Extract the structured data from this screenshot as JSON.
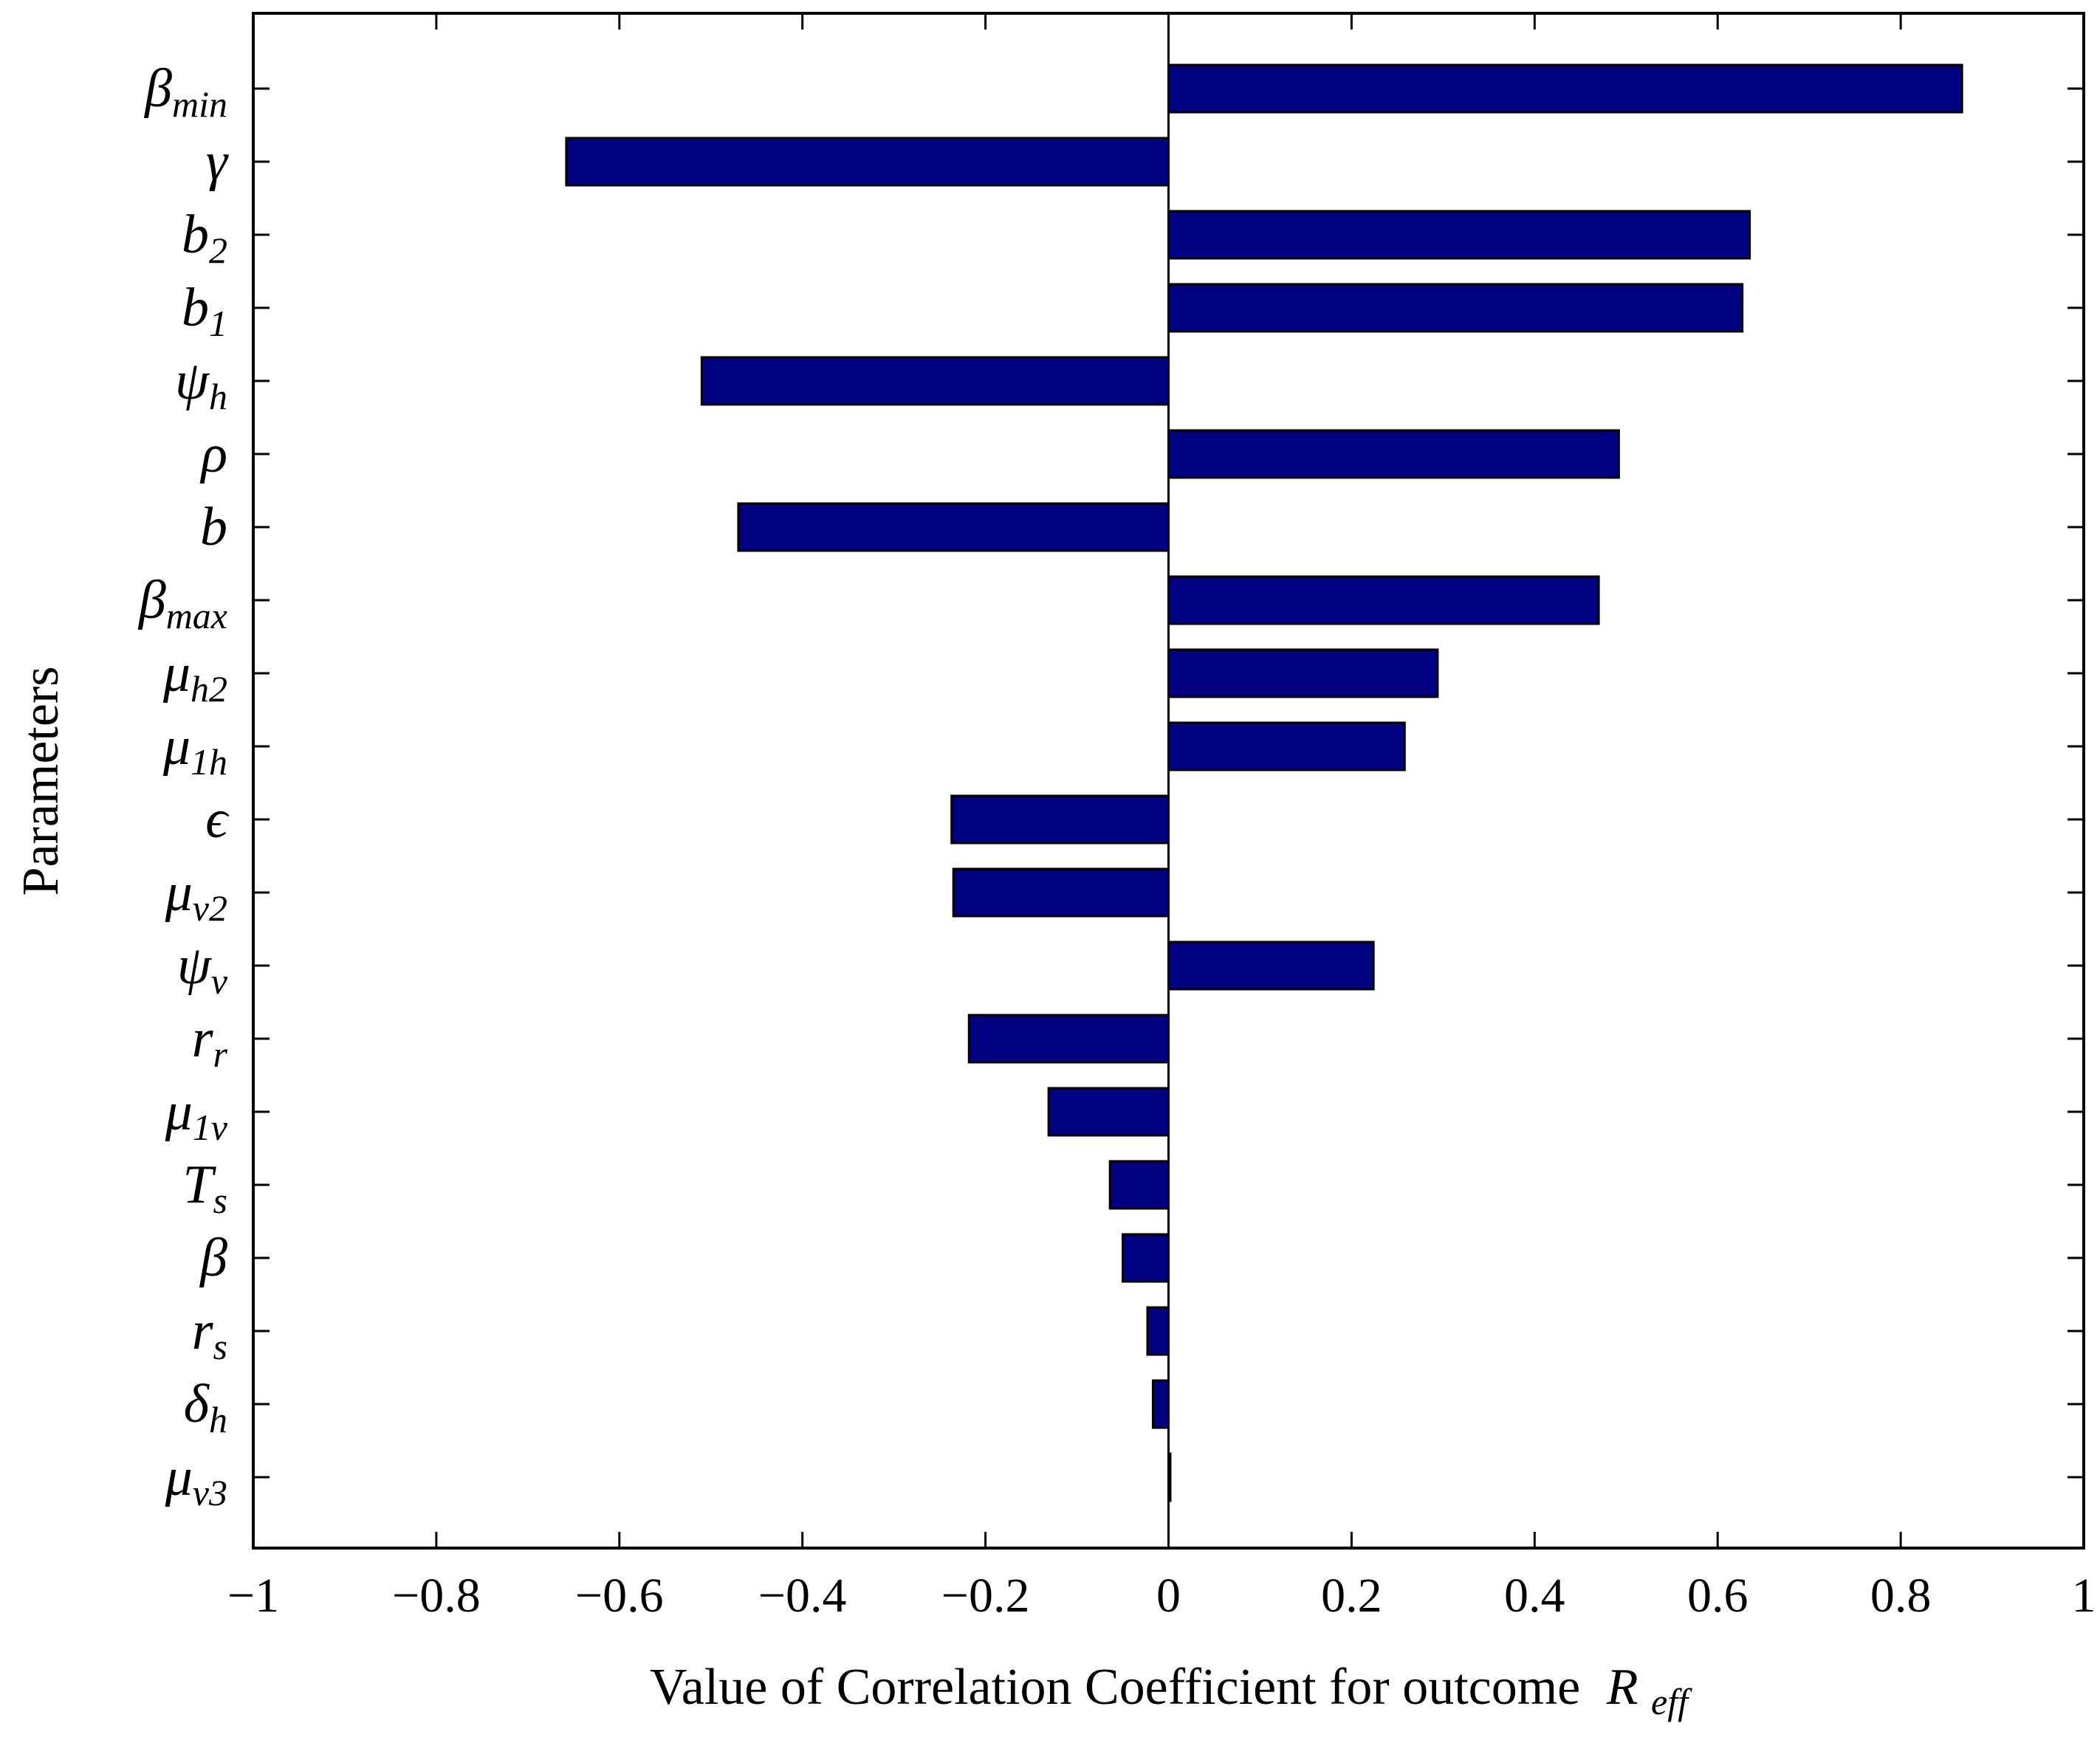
{
  "chart_data": {
    "type": "bar",
    "orientation": "horizontal",
    "xlabel": "Value of Correlation Coefficient for outcome",
    "xlabel_symbol": {
      "base": "R",
      "sub": "eff"
    },
    "ylabel": "Parameters",
    "xlim": [
      -1,
      1
    ],
    "xticks": [
      {
        "value": -1,
        "label": "−1"
      },
      {
        "value": -0.8,
        "label": "−0.8"
      },
      {
        "value": -0.6,
        "label": "−0.6"
      },
      {
        "value": -0.4,
        "label": "−0.4"
      },
      {
        "value": -0.2,
        "label": "−0.2"
      },
      {
        "value": 0,
        "label": "0"
      },
      {
        "value": 0.2,
        "label": "0.2"
      },
      {
        "value": 0.4,
        "label": "0.4"
      },
      {
        "value": 0.6,
        "label": "0.6"
      },
      {
        "value": 0.8,
        "label": "0.8"
      },
      {
        "value": 1,
        "label": "1"
      }
    ],
    "bar_color": "#000080",
    "categories": [
      {
        "base": "β",
        "sub": "min"
      },
      {
        "base": "γ",
        "sub": ""
      },
      {
        "base": "b",
        "sub": "2"
      },
      {
        "base": "b",
        "sub": "1"
      },
      {
        "base": "ψ",
        "sub": "h"
      },
      {
        "base": "ρ",
        "sub": ""
      },
      {
        "base": "b",
        "sub": ""
      },
      {
        "base": "β",
        "sub": "max"
      },
      {
        "base": "μ",
        "sub": "h2"
      },
      {
        "base": "μ",
        "sub": "1h"
      },
      {
        "base": "ϵ",
        "sub": ""
      },
      {
        "base": "μ",
        "sub": "v2"
      },
      {
        "base": "ψ",
        "sub": "v"
      },
      {
        "base": "r",
        "sub": "r"
      },
      {
        "base": "μ",
        "sub": "1v"
      },
      {
        "base": "T",
        "sub": "s"
      },
      {
        "base": "β",
        "sub": ""
      },
      {
        "base": "r",
        "sub": "s"
      },
      {
        "base": "δ",
        "sub": "h"
      },
      {
        "base": "μ",
        "sub": "v3"
      }
    ],
    "values": [
      0.867,
      -0.658,
      0.635,
      0.627,
      -0.51,
      0.492,
      -0.47,
      0.47,
      0.294,
      0.258,
      -0.237,
      -0.235,
      0.224,
      -0.218,
      -0.131,
      -0.064,
      -0.05,
      -0.023,
      -0.017,
      0.002
    ]
  }
}
